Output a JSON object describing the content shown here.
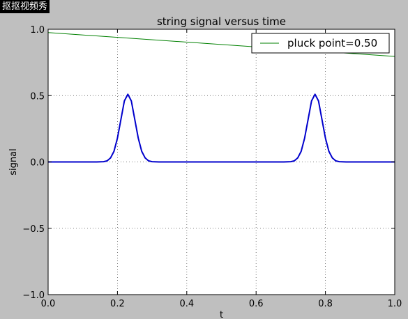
{
  "watermark": "抠抠视频秀",
  "colors": {
    "background": "#bfbfbf",
    "plot_bg": "#ffffff",
    "signal_line": "#0000cc",
    "legend_line": "#008000",
    "grid": "#555555"
  },
  "chart_data": {
    "type": "line",
    "title": "string signal versus time",
    "xlabel": "t",
    "ylabel": "signal",
    "xlim": [
      0.0,
      1.0
    ],
    "ylim": [
      -1.0,
      1.0
    ],
    "xticks": [
      0.0,
      0.2,
      0.4,
      0.6,
      0.8,
      1.0
    ],
    "xtick_labels": [
      "0.0",
      "0.2",
      "0.4",
      "0.6",
      "0.8",
      "1.0"
    ],
    "yticks": [
      -1.0,
      -0.5,
      0.0,
      0.5,
      1.0
    ],
    "ytick_labels": [
      "−1.0",
      "−0.5",
      "0.0",
      "0.5",
      "1.0"
    ],
    "grid": true,
    "legend_position": "top-right",
    "series": [
      {
        "name": "pluck point=0.50",
        "color": "#008000",
        "x": [
          0.0,
          1.0
        ],
        "y": [
          0.975,
          0.795
        ]
      },
      {
        "color": "#0000cc",
        "x": [
          0.0,
          0.1,
          0.14,
          0.16,
          0.17,
          0.18,
          0.19,
          0.2,
          0.21,
          0.22,
          0.23,
          0.24,
          0.25,
          0.26,
          0.27,
          0.28,
          0.29,
          0.3,
          0.32,
          0.36,
          0.5,
          0.64,
          0.68,
          0.7,
          0.71,
          0.72,
          0.73,
          0.74,
          0.75,
          0.76,
          0.77,
          0.78,
          0.79,
          0.8,
          0.81,
          0.82,
          0.83,
          0.84,
          0.86,
          0.9,
          1.0
        ],
        "y": [
          0.0,
          0.0,
          0.0,
          0.002,
          0.008,
          0.03,
          0.08,
          0.18,
          0.32,
          0.46,
          0.51,
          0.46,
          0.32,
          0.18,
          0.08,
          0.03,
          0.008,
          0.002,
          0.0,
          0.0,
          0.0,
          0.0,
          0.0,
          0.002,
          0.008,
          0.03,
          0.08,
          0.18,
          0.32,
          0.46,
          0.51,
          0.46,
          0.32,
          0.18,
          0.08,
          0.03,
          0.008,
          0.002,
          0.0,
          0.0,
          0.0
        ]
      }
    ]
  }
}
